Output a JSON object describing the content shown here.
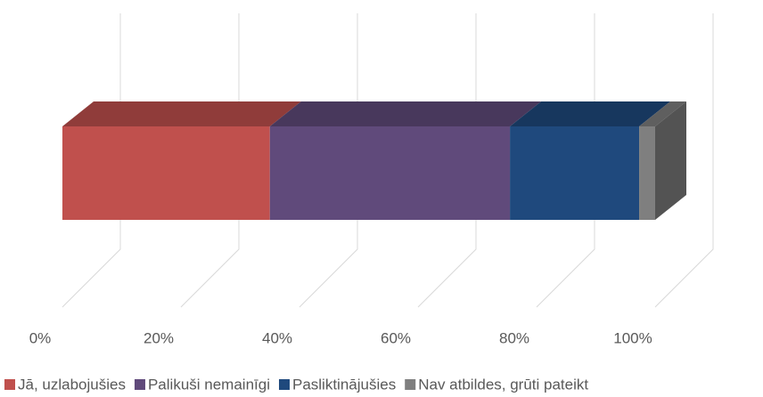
{
  "chart_data": {
    "type": "bar",
    "orientation": "horizontal",
    "stacked": true,
    "three_d": true,
    "categories": [
      null
    ],
    "series": [
      {
        "name": "Jā, uzlabojušies",
        "color": "#c0504d",
        "values": [
          35
        ]
      },
      {
        "name": "Palikuši nemainīgi",
        "color": "#604a7b",
        "values": [
          40.5
        ]
      },
      {
        "name": "Pasliktinājušies",
        "color": "#1f497d",
        "values": [
          21.8
        ]
      },
      {
        "name": "Nav atbildes, grūti pateikt",
        "color": "#7f7f7f",
        "values": [
          2.7
        ]
      }
    ],
    "xlim": [
      0,
      100
    ],
    "xticks": [
      {
        "value": 0,
        "label": "0%"
      },
      {
        "value": 20,
        "label": "20%"
      },
      {
        "value": 40,
        "label": "40%"
      },
      {
        "value": 60,
        "label": "60%"
      },
      {
        "value": 80,
        "label": "80%"
      },
      {
        "value": 100,
        "label": "100%"
      }
    ],
    "grid": true,
    "legend": "bottom"
  }
}
